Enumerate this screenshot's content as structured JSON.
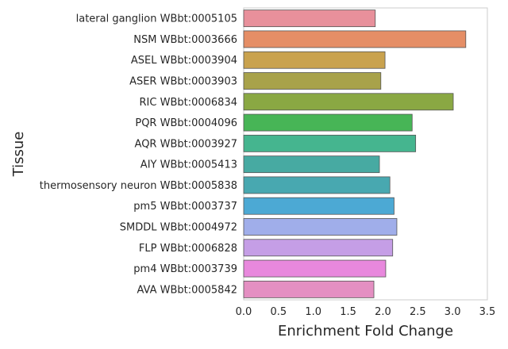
{
  "chart_data": {
    "type": "bar",
    "orientation": "horizontal",
    "xlabel": "Enrichment Fold Change",
    "ylabel": "Tissue",
    "xlim": [
      0,
      3.5
    ],
    "xticks": [
      "0.0",
      "0.5",
      "1.0",
      "1.5",
      "2.0",
      "2.5",
      "3.0",
      "3.5"
    ],
    "grid": true,
    "categories": [
      "lateral ganglion WBbt:0005105",
      "NSM WBbt:0003666",
      "ASEL WBbt:0003904",
      "ASER WBbt:0003903",
      "RIC WBbt:0006834",
      "PQR WBbt:0004096",
      "AQR WBbt:0003927",
      "AIY WBbt:0005413",
      "thermosensory neuron WBbt:0005838",
      "pm5 WBbt:0003737",
      "SMDDL WBbt:0004972",
      "FLP WBbt:0006828",
      "pm4 WBbt:0003739",
      "AVA WBbt:0005842"
    ],
    "values": [
      1.89,
      3.19,
      2.03,
      1.97,
      3.01,
      2.42,
      2.47,
      1.95,
      2.1,
      2.16,
      2.2,
      2.14,
      2.04,
      1.87
    ],
    "colors": [
      "#e8909b",
      "#e58e66",
      "#c9a24e",
      "#a8a24a",
      "#8aa843",
      "#47b556",
      "#45b58f",
      "#47aaa2",
      "#48a8b0",
      "#4ca9d4",
      "#a0aeea",
      "#c59ee6",
      "#e888dd",
      "#e48fc2"
    ]
  }
}
